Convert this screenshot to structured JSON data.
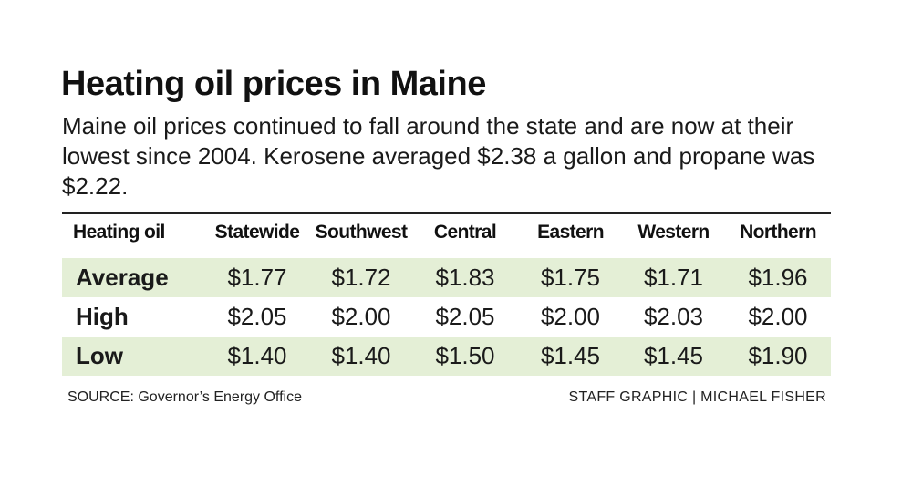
{
  "chart_data": {
    "type": "table",
    "title": "Heating oil prices in Maine",
    "subtitle": "Maine oil prices continued to fall around the state and are now at their lowest since 2004. Kerosene averaged $2.38 a gallon and propane was $2.22.",
    "columns": [
      "Heating oil",
      "Statewide",
      "Southwest",
      "Central",
      "Eastern",
      "Western",
      "Northern"
    ],
    "rows": [
      {
        "label": "Average",
        "values": [
          "$1.77",
          "$1.72",
          "$1.83",
          "$1.75",
          "$1.71",
          "$1.96"
        ]
      },
      {
        "label": "High",
        "values": [
          "$2.05",
          "$2.00",
          "$2.05",
          "$2.00",
          "$2.03",
          "$2.00"
        ]
      },
      {
        "label": "Low",
        "values": [
          "$1.40",
          "$1.40",
          "$1.50",
          "$1.45",
          "$1.45",
          "$1.90"
        ]
      }
    ],
    "source": "SOURCE: Governor’s Energy Office",
    "credit": "STAFF GRAPHIC | MICHAEL FISHER"
  },
  "colors": {
    "row_shade": "#e4efd6",
    "rule": "#222222"
  }
}
